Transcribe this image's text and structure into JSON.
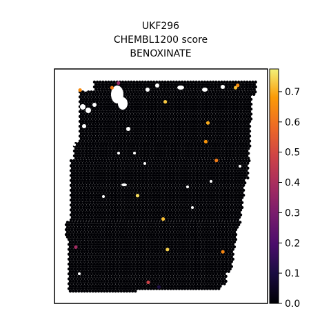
{
  "chart_data": {
    "type": "scatter",
    "title_lines": [
      "UKF296",
      "CHEMBL1200 score",
      "BENOXINATE"
    ],
    "xlabel": "",
    "ylabel": "",
    "axes_ticks_visible": false,
    "grid": false,
    "colormap": "inferno",
    "colorbar": {
      "range": [
        0.0,
        0.775
      ],
      "ticks": [
        0.0,
        0.1,
        0.2,
        0.3,
        0.4,
        0.5,
        0.6,
        0.7
      ],
      "tick_labels": [
        "0.0",
        "0.1",
        "0.2",
        "0.3",
        "0.4",
        "0.5",
        "0.6",
        "0.7"
      ],
      "location": "right"
    },
    "background_spot_value": 0.0,
    "highlighted_spots": [
      {
        "x": 0.3,
        "y": 0.94,
        "value": 0.36
      },
      {
        "x": 0.27,
        "y": 0.92,
        "value": 0.62
      },
      {
        "x": 0.12,
        "y": 0.91,
        "value": 0.65
      },
      {
        "x": 0.86,
        "y": 0.93,
        "value": 0.65
      },
      {
        "x": 0.85,
        "y": 0.92,
        "value": 0.72
      },
      {
        "x": 0.52,
        "y": 0.86,
        "value": 0.73
      },
      {
        "x": 0.72,
        "y": 0.77,
        "value": 0.7
      },
      {
        "x": 0.71,
        "y": 0.69,
        "value": 0.67
      },
      {
        "x": 0.76,
        "y": 0.61,
        "value": 0.62
      },
      {
        "x": 0.39,
        "y": 0.46,
        "value": 0.75
      },
      {
        "x": 0.51,
        "y": 0.36,
        "value": 0.72
      },
      {
        "x": 0.53,
        "y": 0.23,
        "value": 0.74
      },
      {
        "x": 0.79,
        "y": 0.22,
        "value": 0.64
      },
      {
        "x": 0.1,
        "y": 0.24,
        "value": 0.38
      },
      {
        "x": 0.44,
        "y": 0.09,
        "value": 0.48
      },
      {
        "x": 0.49,
        "y": 0.07,
        "value": 0.1
      }
    ]
  }
}
